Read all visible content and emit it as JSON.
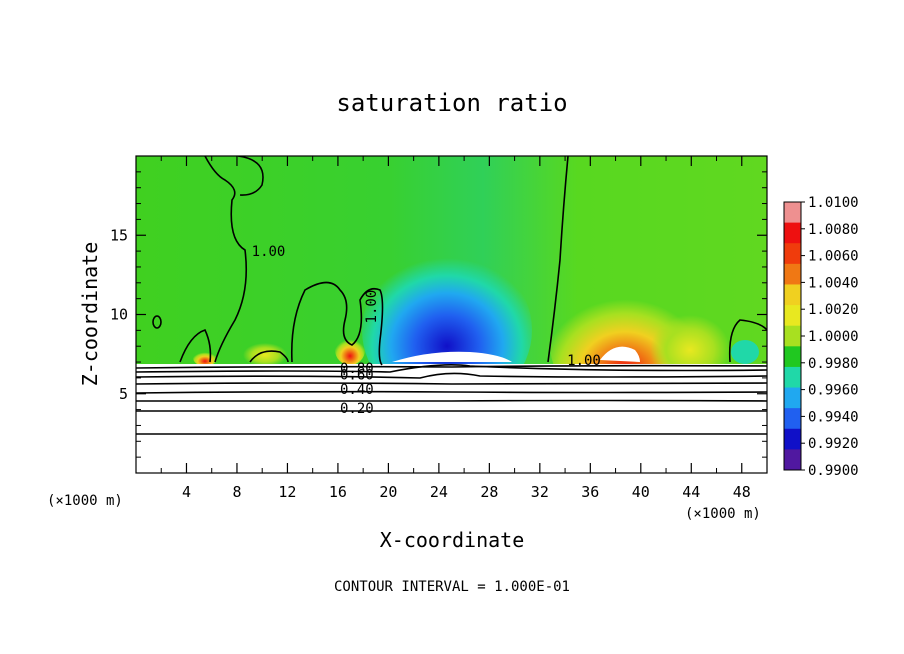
{
  "chart_data": {
    "type": "heatmap",
    "title": "saturation ratio",
    "xlabel": "X-coordinate",
    "ylabel": "Z-coordinate",
    "x_unit_left": "(×1000 m)",
    "x_unit_right": "(×1000 m)",
    "footer": "CONTOUR INTERVAL = 1.000E-01",
    "xlim": [
      0,
      50
    ],
    "ylim": [
      0,
      20
    ],
    "x_ticks": [
      "4",
      "8",
      "12",
      "16",
      "20",
      "24",
      "28",
      "32",
      "36",
      "40",
      "44",
      "48"
    ],
    "y_ticks": [
      "5",
      "10",
      "15"
    ],
    "colorbar": {
      "min": 0.99,
      "max": 1.01,
      "labels": [
        "1.0100",
        "1.0080",
        "1.0060",
        "1.0040",
        "1.0020",
        "1.0000",
        "0.9980",
        "0.9960",
        "0.9940",
        "0.9920",
        "0.9900"
      ],
      "colors": [
        "#ee9090",
        "#ee1010",
        "#f03c0c",
        "#f07814",
        "#f0d020",
        "#e8e820",
        "#a8e020",
        "#20c820",
        "#20d8a8",
        "#20a8f0",
        "#2060f0",
        "#1010c8",
        "#5018a0"
      ]
    },
    "contour_labels": [
      {
        "text": "1.00",
        "x": 10.5,
        "z": 13.7
      },
      {
        "text": "1.00",
        "x": 19.0,
        "z": 10.5
      },
      {
        "text": "1.00",
        "x": 35.5,
        "z": 6.8
      },
      {
        "text": "0.80",
        "x": 17.5,
        "z": 6.3
      },
      {
        "text": "0.60",
        "x": 17.5,
        "z": 5.9
      },
      {
        "text": "0.40",
        "x": 17.5,
        "z": 5.0
      },
      {
        "text": "0.20",
        "x": 17.5,
        "z": 3.8
      }
    ]
  }
}
